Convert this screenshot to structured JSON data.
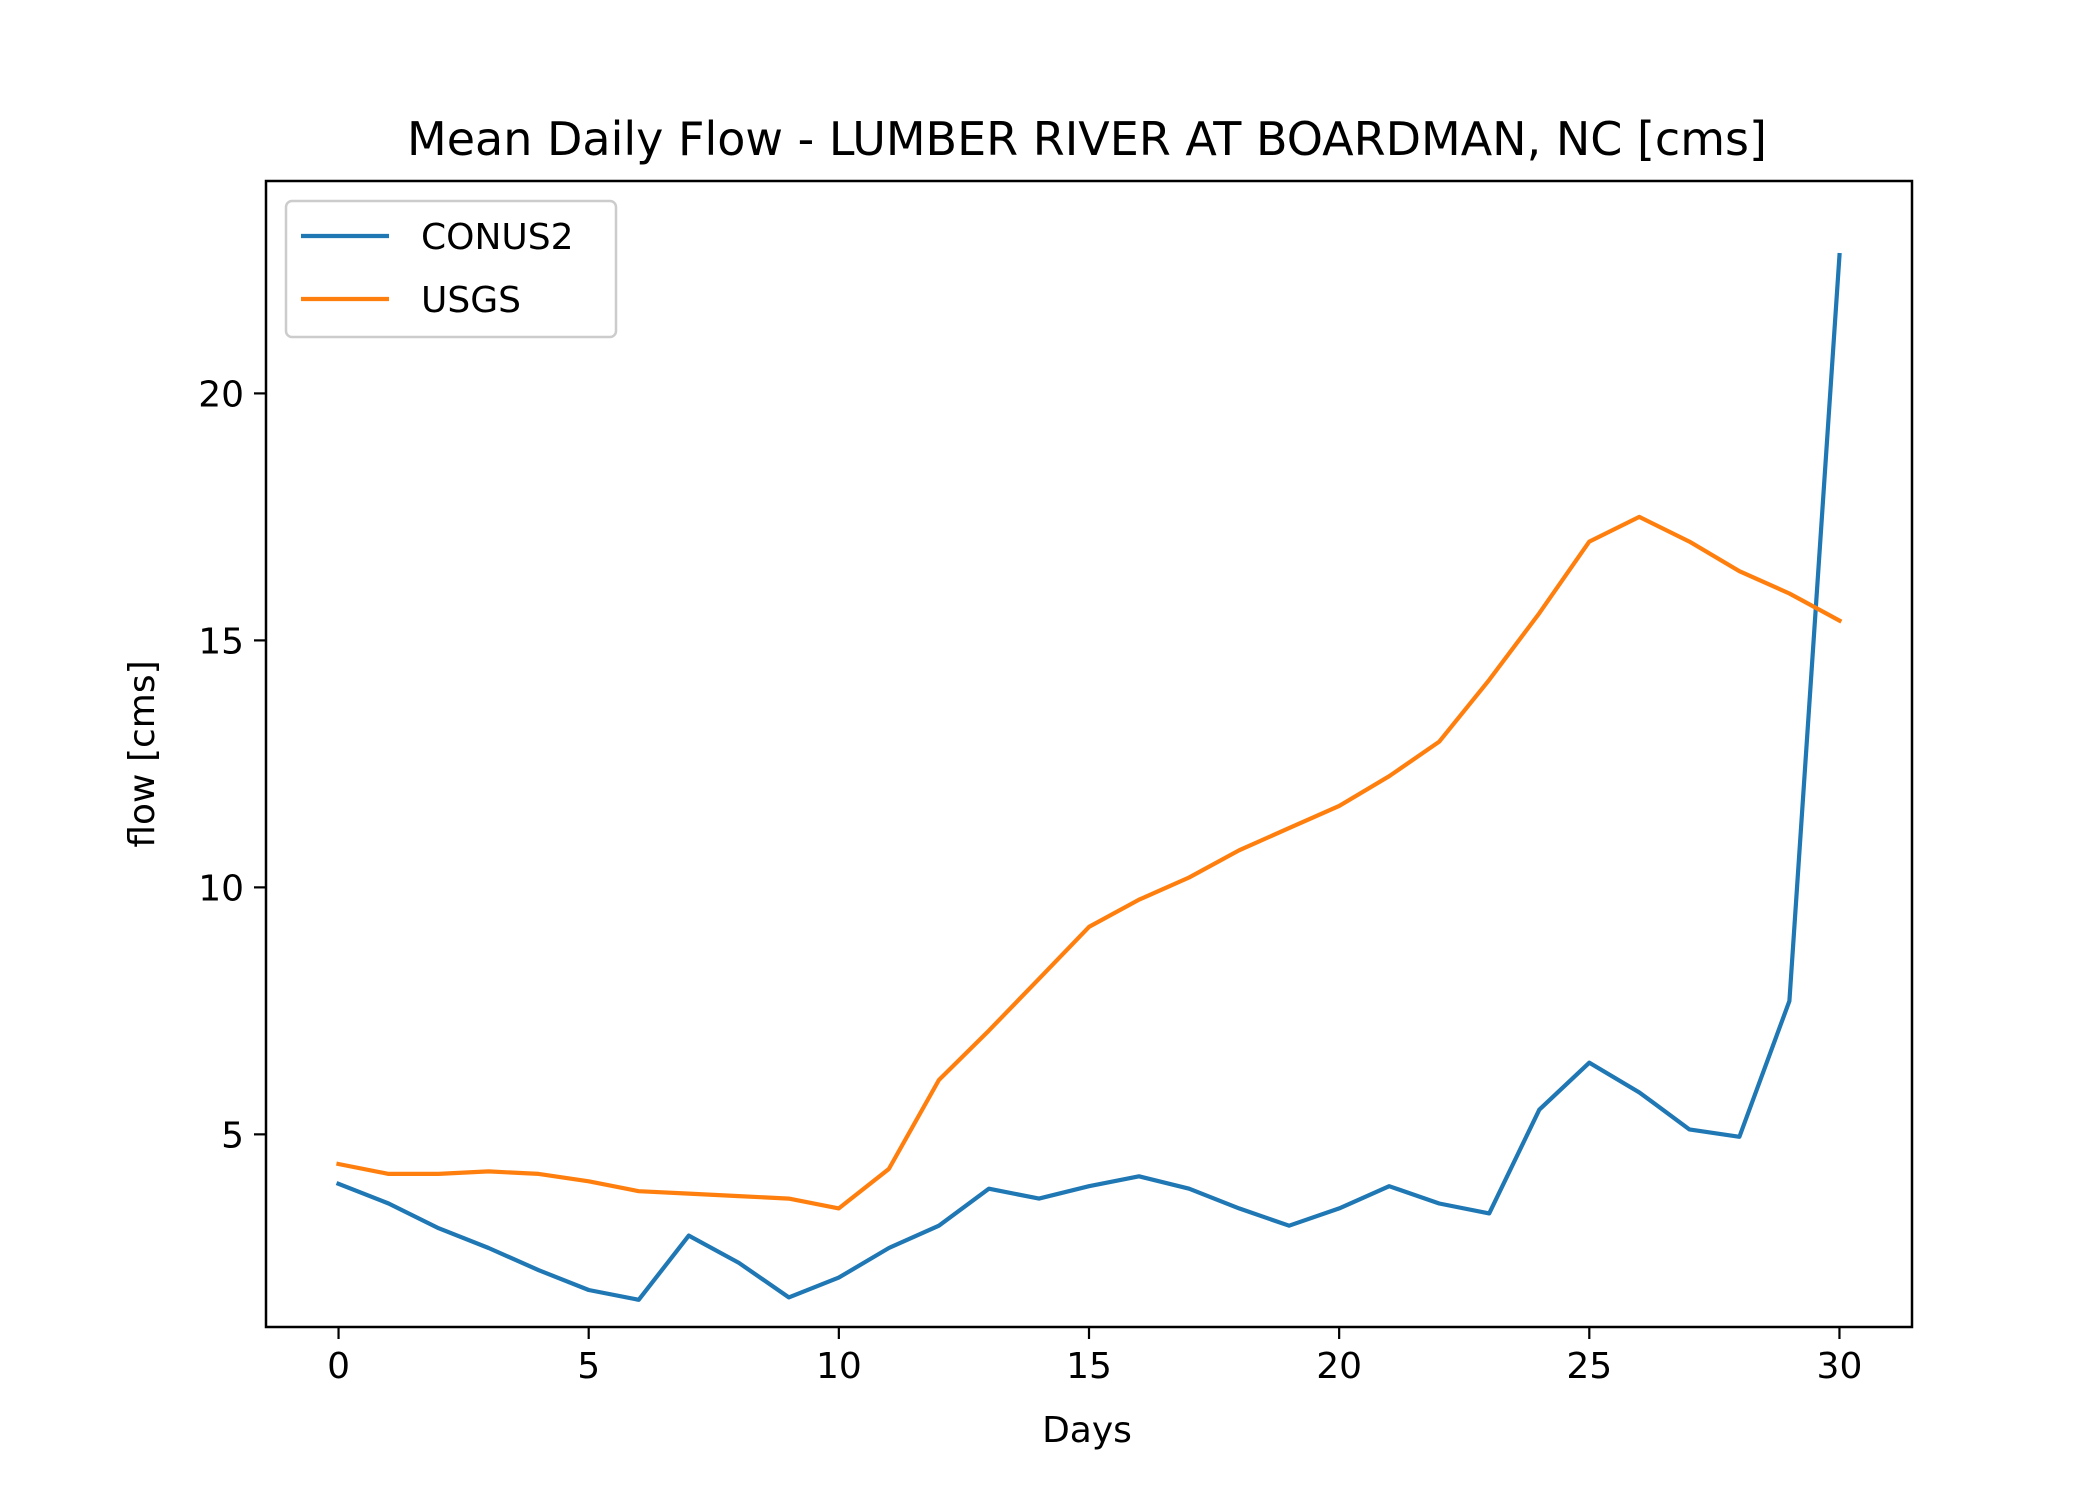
{
  "chart_data": {
    "type": "line",
    "title": "Mean Daily Flow - LUMBER RIVER AT BOARDMAN, NC [cms]",
    "xlabel": "Days",
    "ylabel": "flow [cms]",
    "xlim": [
      -1.45,
      31.45
    ],
    "ylim": [
      1.1,
      24.3
    ],
    "xticks": [
      0,
      5,
      10,
      15,
      20,
      25,
      30
    ],
    "yticks": [
      5,
      10,
      15,
      20
    ],
    "grid": false,
    "legend_position": "upper-left",
    "x": [
      0,
      1,
      2,
      3,
      4,
      5,
      6,
      7,
      8,
      9,
      10,
      11,
      12,
      13,
      14,
      15,
      16,
      17,
      18,
      19,
      20,
      21,
      22,
      23,
      24,
      25,
      26,
      27,
      28,
      29,
      30
    ],
    "series": [
      {
        "name": "CONUS2",
        "color": "#1f77b4",
        "values": [
          4.0,
          3.6,
          3.1,
          2.7,
          2.25,
          1.85,
          1.65,
          2.95,
          2.4,
          1.7,
          2.1,
          2.7,
          3.15,
          3.9,
          3.7,
          3.95,
          4.15,
          3.9,
          3.5,
          3.15,
          3.5,
          3.95,
          3.6,
          3.4,
          5.5,
          6.45,
          5.85,
          5.1,
          4.95,
          7.7,
          22.8
        ]
      },
      {
        "name": "USGS",
        "color": "#ff7f0e",
        "values": [
          4.4,
          4.2,
          4.2,
          4.25,
          4.2,
          4.05,
          3.85,
          3.8,
          3.75,
          3.7,
          3.5,
          4.3,
          6.1,
          7.1,
          8.15,
          9.2,
          9.75,
          10.2,
          10.75,
          11.2,
          11.65,
          12.25,
          12.95,
          14.2,
          15.55,
          17.0,
          17.5,
          17.0,
          16.4,
          15.95,
          15.4
        ]
      }
    ]
  }
}
